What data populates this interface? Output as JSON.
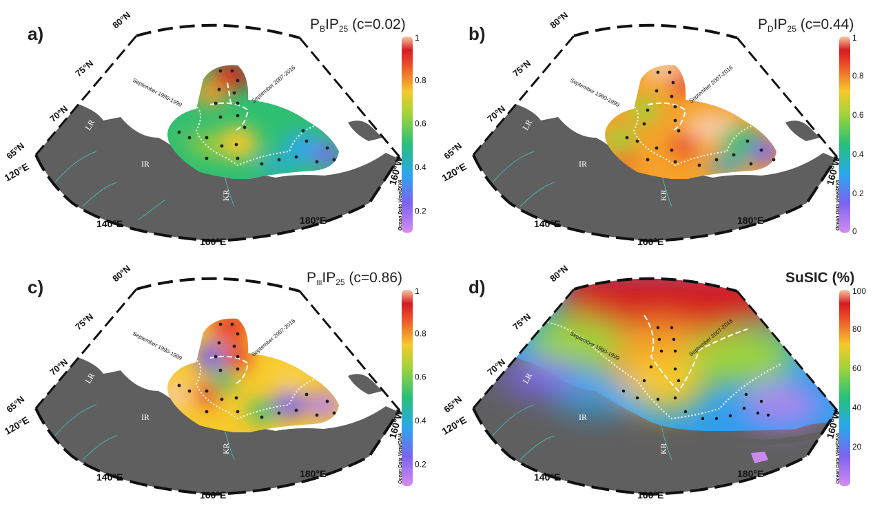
{
  "panels": [
    {
      "label": "a)",
      "title_main": "P",
      "title_sub1": "B",
      "title_mid": "IP",
      "title_sub2": "25",
      "title_c": " (c=0.02)",
      "colorbar": {
        "ticks": [
          "1",
          "0.8",
          "0.6",
          "0.4",
          "0.2"
        ],
        "min": 0.1,
        "max": 1
      }
    },
    {
      "label": "b)",
      "title_main": "P",
      "title_sub1": "D",
      "title_mid": "IP",
      "title_sub2": "25",
      "title_c": " (c=0.44)",
      "colorbar": {
        "ticks": [
          "1",
          "0.8",
          "0.6",
          "0.4",
          "0.2",
          "0"
        ],
        "min": 0,
        "max": 1
      }
    },
    {
      "label": "c)",
      "title_main": "P",
      "title_sub1": "III",
      "title_mid": "IP",
      "title_sub2": "25",
      "title_c": " (c=0.86)",
      "colorbar": {
        "ticks": [
          "1",
          "0.8",
          "0.6",
          "0.4",
          "0.2"
        ],
        "min": 0.1,
        "max": 1
      }
    },
    {
      "label": "d)",
      "title_full": "SuSIC (%)",
      "colorbar": {
        "ticks": [
          "100",
          "80",
          "60",
          "40",
          "20"
        ],
        "min": 0,
        "max": 100
      }
    }
  ],
  "map_labels": {
    "lat_80": "80°N",
    "lat_75": "75°N",
    "lat_70": "70°N",
    "lat_65": "65°N",
    "lon_120": "120°E",
    "lon_140": "140°E",
    "lon_160": "160°E",
    "lon_180": "180°E",
    "lon_160w": "160°W",
    "river_lr": "LR",
    "river_ir": "IR",
    "river_kr": "KR",
    "sept_1990": "September 1990-1999",
    "sept_2007": "September 2007-2016",
    "odv": "Ocean Data View/DIVA"
  },
  "colors": {
    "land": "#5f5f5f",
    "river": "#4ab3b5",
    "ocean": "#ffffff"
  }
}
